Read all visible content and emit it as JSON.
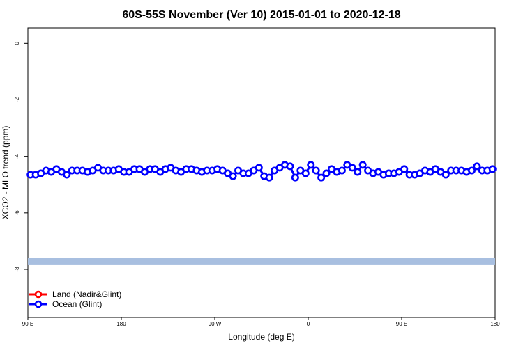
{
  "chart_data": {
    "type": "line",
    "title": "60S-55S November (Ver 10)   2015-01-01 to 2020-12-18",
    "xlabel": "Longitude (deg E)",
    "ylabel": "XCO2 - MLO trend (ppm)",
    "x_ticks": [
      {
        "value": 90,
        "label": "90 E"
      },
      {
        "value": 180,
        "label": "180"
      },
      {
        "value": 270,
        "label": "90 W"
      },
      {
        "value": 360,
        "label": "0"
      },
      {
        "value": 450,
        "label": "90 E"
      },
      {
        "value": 540,
        "label": "180"
      }
    ],
    "y_ticks": [
      0,
      -2,
      -4,
      -6,
      -8
    ],
    "xlim": [
      90,
      540
    ],
    "ylim": [
      -9.7,
      0.55
    ],
    "legend_position": "bottom-left",
    "colors": {
      "land": "#ff0000",
      "ocean": "#0000ff",
      "band": "#a8bfe0"
    },
    "band": {
      "y_low": -7.85,
      "y_high": -7.6,
      "x_start": 90,
      "x_end": 540
    },
    "series": [
      {
        "name": "Land (Nadir&Glint)",
        "color": "#ff0000",
        "x": [],
        "y": []
      },
      {
        "name": "Ocean (Glint)",
        "color": "#0000ff",
        "x": [
          92.5,
          97.5,
          102.5,
          107.5,
          112.5,
          117.5,
          122.5,
          127.5,
          132.5,
          137.5,
          142.5,
          147.5,
          152.5,
          157.5,
          162.5,
          167.5,
          172.5,
          177.5,
          182.5,
          187.5,
          192.5,
          197.5,
          202.5,
          207.5,
          212.5,
          217.5,
          222.5,
          227.5,
          232.5,
          237.5,
          242.5,
          247.5,
          252.5,
          257.5,
          262.5,
          267.5,
          272.5,
          277.5,
          282.5,
          287.5,
          292.5,
          297.5,
          302.5,
          307.5,
          312.5,
          317.5,
          322.5,
          327.5,
          332.5,
          337.5,
          342.5,
          347.5,
          352.5,
          357.5,
          362.5,
          367.5,
          372.5,
          377.5,
          382.5,
          387.5,
          392.5,
          397.5,
          402.5,
          407.5,
          412.5,
          417.5,
          422.5,
          427.5,
          432.5,
          437.5,
          442.5,
          447.5,
          452.5,
          457.5,
          462.5,
          467.5,
          472.5,
          477.5,
          482.5,
          487.5,
          492.5,
          497.5,
          502.5,
          507.5,
          512.5,
          517.5,
          522.5,
          527.5,
          532.5,
          537.5
        ],
        "y": [
          -4.65,
          -4.65,
          -4.6,
          -4.5,
          -4.55,
          -4.45,
          -4.55,
          -4.65,
          -4.5,
          -4.5,
          -4.5,
          -4.55,
          -4.5,
          -4.4,
          -4.5,
          -4.5,
          -4.5,
          -4.45,
          -4.55,
          -4.55,
          -4.45,
          -4.45,
          -4.55,
          -4.45,
          -4.45,
          -4.55,
          -4.45,
          -4.4,
          -4.5,
          -4.55,
          -4.45,
          -4.45,
          -4.5,
          -4.55,
          -4.5,
          -4.5,
          -4.45,
          -4.5,
          -4.6,
          -4.7,
          -4.5,
          -4.6,
          -4.6,
          -4.5,
          -4.4,
          -4.7,
          -4.75,
          -4.5,
          -4.4,
          -4.3,
          -4.35,
          -4.75,
          -4.5,
          -4.6,
          -4.3,
          -4.5,
          -4.75,
          -4.6,
          -4.45,
          -4.55,
          -4.5,
          -4.3,
          -4.4,
          -4.55,
          -4.3,
          -4.5,
          -4.6,
          -4.55,
          -4.65,
          -4.6,
          -4.6,
          -4.55,
          -4.45,
          -4.65,
          -4.65,
          -4.6,
          -4.5,
          -4.55,
          -4.45,
          -4.55,
          -4.65,
          -4.5,
          -4.5,
          -4.5,
          -4.55,
          -4.5,
          -4.35,
          -4.5,
          -4.5,
          -4.45
        ]
      }
    ]
  }
}
